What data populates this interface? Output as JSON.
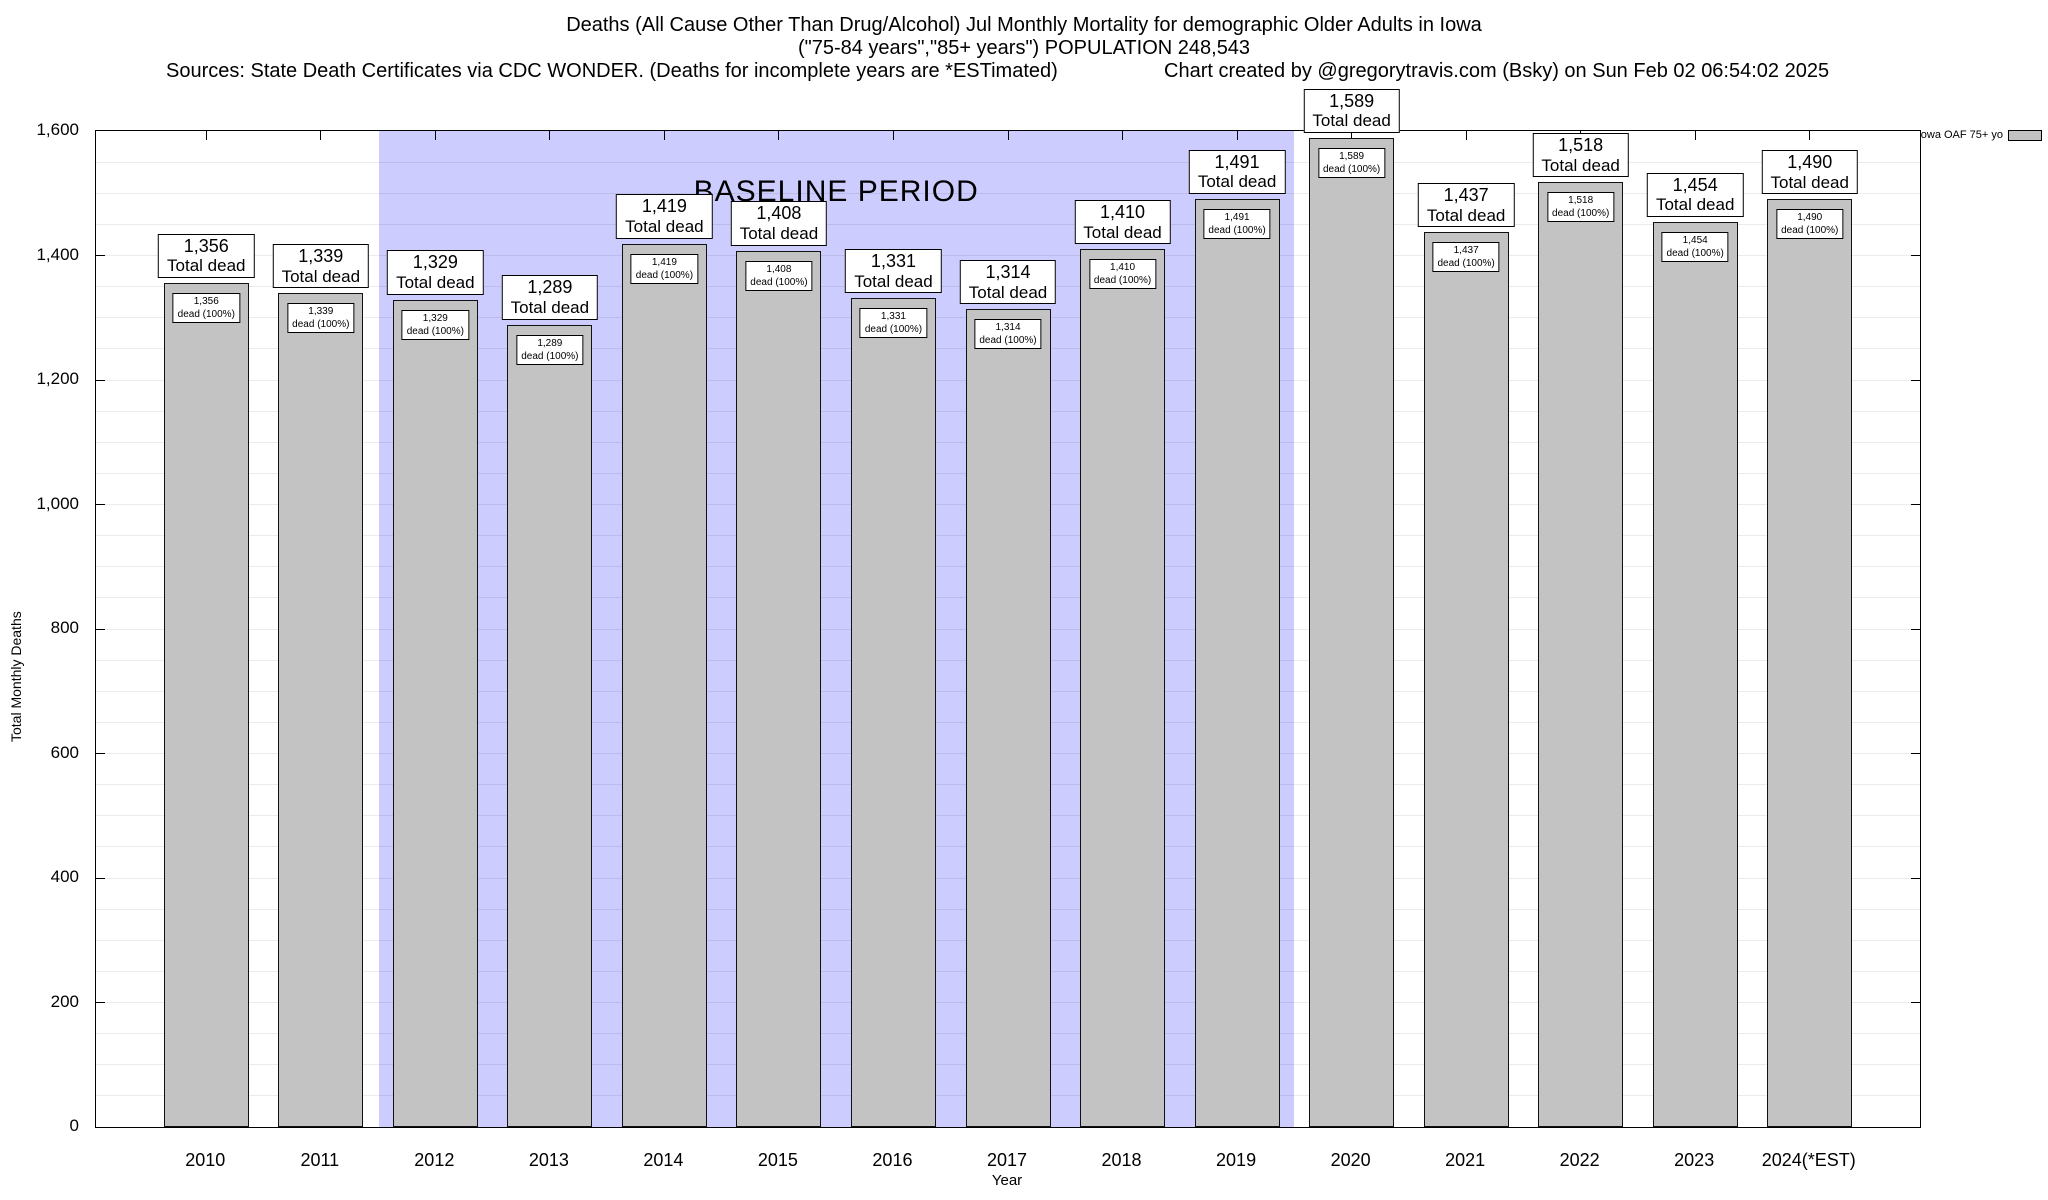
{
  "header": {
    "title_line1": "Deaths (All Cause Other Than Drug/Alcohol) Jul Monthly Mortality for demographic Older Adults in Iowa",
    "title_line2": "(\"75-84 years\",\"85+ years\") POPULATION 248,543",
    "source_line": "Sources: State Death Certificates via CDC WONDER. (Deaths for incomplete years are *ESTimated)",
    "credit_line": "Chart created by @gregorytravis.com (Bsky) on Sun Feb 02 06:54:02 2025"
  },
  "legend": {
    "label": "Iowa OAF 75+ yo",
    "swatch_color": "#c3c3c3"
  },
  "chart_data": {
    "type": "bar",
    "title": "Deaths (All Cause Other Than Drug/Alcohol) Jul Monthly Mortality for demographic Older Adults in Iowa",
    "subtitle": "(\"75-84 years\",\"85+ years\") POPULATION 248,543",
    "xlabel": "Year",
    "ylabel": "Total Monthly Deaths",
    "ylim": [
      0,
      1600
    ],
    "ytick_step": 200,
    "grid": true,
    "legend_position": "top-right",
    "series_name": "Iowa OAF 75+ yo",
    "bar_color": "#c3c3c3",
    "categories": [
      "2010",
      "2011",
      "2012",
      "2013",
      "2014",
      "2015",
      "2016",
      "2017",
      "2018",
      "2019",
      "2020",
      "2021",
      "2022",
      "2023",
      "2024(*EST)"
    ],
    "values": [
      1356,
      1339,
      1329,
      1289,
      1419,
      1408,
      1331,
      1314,
      1410,
      1491,
      1589,
      1437,
      1518,
      1454,
      1490
    ],
    "bar_label_suffix": "Total dead",
    "bar_inner_label_suffix": "dead (100%)",
    "baseline_period": {
      "start_category": "2012",
      "end_category": "2019",
      "label": "BASELINE PERIOD",
      "color": "#ccccff"
    }
  }
}
